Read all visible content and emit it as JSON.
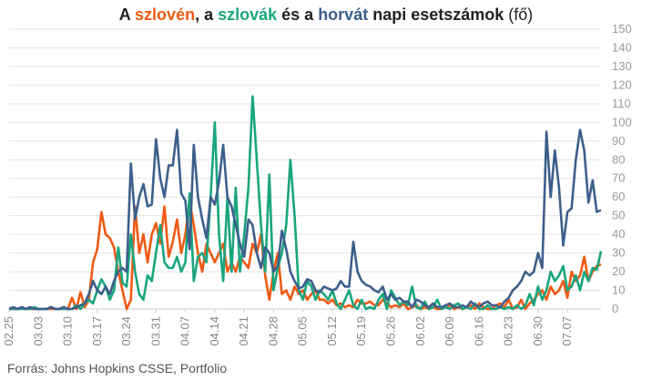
{
  "title": {
    "part1": "A ",
    "slovenian": "szlovén",
    "part2": ", a ",
    "slovak": "szlovák",
    "part3": " és a ",
    "croatian": "horvát",
    "part4": " napi esetszámok",
    "unit": " (fő)"
  },
  "source": "Forrás: Johns Hopkins CSSE, Portfolio",
  "colors": {
    "slovenian": "#f05a14",
    "slovak": "#1aa57e",
    "croatian": "#3d5f8c",
    "grid": "#e3e3e3",
    "axis": "#cccccc"
  },
  "chart_data": {
    "type": "line",
    "ylim": [
      0,
      150
    ],
    "yticks": [
      0,
      10,
      20,
      30,
      40,
      50,
      60,
      70,
      80,
      90,
      100,
      110,
      120,
      130,
      140,
      150
    ],
    "xlabels": [
      "02.25",
      "03.03",
      "03.10",
      "03.17",
      "03.24",
      "03.31",
      "04.07",
      "04.14",
      "04.21",
      "04.28",
      "05.05",
      "05.12",
      "05.19",
      "05.26",
      "06.02",
      "06.09",
      "06.16",
      "06.23",
      "06.30",
      "07.07"
    ],
    "x_start": "02.25",
    "x_end": "07.09",
    "grid": true,
    "series": [
      {
        "name": "szlovén",
        "key": "slovenian",
        "values": [
          0,
          0,
          0,
          1,
          0,
          0,
          0,
          0,
          0,
          0,
          0,
          0,
          0,
          1,
          0,
          6,
          0,
          9,
          1,
          5,
          25,
          32,
          52,
          40,
          38,
          33,
          20,
          10,
          0,
          5,
          55,
          30,
          40,
          25,
          40,
          46,
          35,
          55,
          28,
          36,
          48,
          30,
          40,
          58,
          45,
          30,
          20,
          35,
          30,
          25,
          30,
          35,
          20,
          25,
          20,
          28,
          25,
          22,
          35,
          30,
          40,
          18,
          5,
          20,
          30,
          8,
          10,
          5,
          12,
          8,
          10,
          5,
          8,
          10,
          5,
          5,
          3,
          5,
          2,
          3,
          1,
          2,
          1,
          5,
          3,
          3,
          4,
          2,
          2,
          5,
          3,
          1,
          2,
          1,
          3,
          0,
          1,
          2,
          0,
          1,
          0,
          1,
          0,
          0,
          1,
          2,
          0,
          1,
          0,
          1,
          2,
          0,
          3,
          1,
          0,
          0,
          2,
          3,
          1,
          5,
          0,
          1,
          5,
          0,
          3,
          5,
          8,
          10,
          5,
          12,
          8,
          10,
          15,
          6,
          20,
          15,
          18,
          28,
          15,
          20,
          23,
          24
        ]
      },
      {
        "name": "szlovák",
        "key": "slovak",
        "values": [
          0,
          0,
          0,
          0,
          0,
          0,
          1,
          0,
          0,
          0,
          1,
          0,
          0,
          0,
          0,
          0,
          2,
          0,
          3,
          5,
          3,
          10,
          16,
          12,
          5,
          10,
          33,
          14,
          12,
          40,
          20,
          8,
          5,
          18,
          15,
          30,
          45,
          25,
          22,
          22,
          28,
          20,
          25,
          62,
          15,
          28,
          30,
          25,
          60,
          100,
          40,
          15,
          60,
          20,
          65,
          20,
          40,
          65,
          114,
          80,
          45,
          20,
          72,
          10,
          22,
          30,
          45,
          80,
          50,
          10,
          5,
          15,
          12,
          5,
          10,
          8,
          5,
          10,
          3,
          0,
          5,
          10,
          2,
          0,
          5,
          0,
          1,
          0,
          5,
          8,
          0,
          10,
          6,
          2,
          4,
          2,
          12,
          1,
          0,
          4,
          0,
          1,
          5,
          0,
          1,
          0,
          2,
          3,
          0,
          1,
          0,
          3,
          0,
          0,
          2,
          0,
          0,
          1,
          0,
          1,
          0,
          2,
          0,
          2,
          8,
          2,
          12,
          5,
          10,
          20,
          15,
          18,
          23,
          10,
          12,
          18,
          10,
          20,
          15,
          22,
          21,
          31
        ]
      },
      {
        "name": "horvát",
        "key": "croatian",
        "values": [
          0,
          1,
          0,
          1,
          0,
          1,
          0,
          0,
          0,
          0,
          1,
          0,
          0,
          1,
          0,
          0,
          1,
          2,
          3,
          8,
          15,
          10,
          8,
          12,
          8,
          15,
          20,
          22,
          20,
          78,
          48,
          60,
          67,
          55,
          56,
          91,
          70,
          60,
          77,
          77,
          96,
          62,
          58,
          32,
          88,
          60,
          48,
          38,
          60,
          56,
          68,
          88,
          60,
          55,
          45,
          35,
          28,
          48,
          45,
          30,
          22,
          33,
          30,
          20,
          23,
          42,
          32,
          20,
          15,
          11,
          12,
          16,
          15,
          10,
          9,
          12,
          11,
          10,
          11,
          15,
          12,
          12,
          36,
          20,
          15,
          13,
          12,
          10,
          9,
          12,
          5,
          8,
          5,
          6,
          4,
          4,
          1,
          5,
          4,
          2,
          1,
          3,
          1,
          1,
          2,
          3,
          1,
          1,
          2,
          1,
          4,
          2,
          1,
          3,
          4,
          2,
          2,
          1,
          4,
          6,
          10,
          12,
          15,
          20,
          18,
          20,
          30,
          22,
          95,
          60,
          85,
          65,
          34,
          52,
          54,
          80,
          96,
          85,
          57,
          69,
          52,
          53
        ]
      }
    ]
  }
}
